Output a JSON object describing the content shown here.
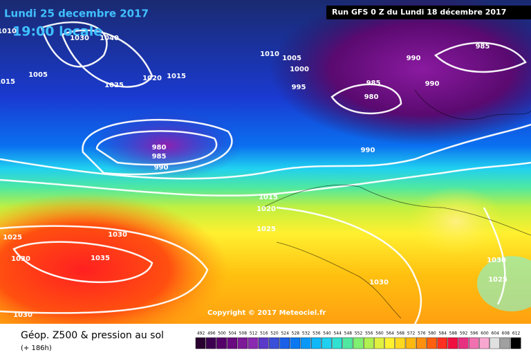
{
  "header": {
    "date": "Lundi 25 decembre 2017",
    "time": "19:00 locale",
    "run": "Run GFS 0 Z du Lundi 18 décembre 2017"
  },
  "map": {
    "isobar_labels": [
      1030,
      1040,
      1010,
      1005,
      1015,
      1025,
      1020,
      1015,
      1010,
      1005,
      1000,
      995,
      990,
      985,
      985,
      980,
      990,
      990,
      980,
      985,
      990,
      1015,
      1020,
      1025,
      1030,
      1035,
      1025,
      1030,
      1030,
      1030,
      1025,
      1030
    ],
    "copyright": "Copyright © 2017 Meteociel.fr"
  },
  "footer": {
    "title": "Géop. Z500 & pression au sol",
    "lead": "(+ 186h)",
    "scale": {
      "values": [
        492,
        496,
        500,
        504,
        508,
        512,
        516,
        520,
        524,
        528,
        532,
        536,
        540,
        544,
        548,
        552,
        556,
        560,
        564,
        568,
        572,
        576,
        580,
        584,
        588,
        592,
        596,
        600,
        604,
        608,
        612
      ],
      "colors": [
        "#2a0030",
        "#3d0050",
        "#55006a",
        "#6a0a80",
        "#7d1a98",
        "#8a2ab0",
        "#5a3ac8",
        "#3a50d8",
        "#1a60e8",
        "#0a78f0",
        "#0a98f8",
        "#10b8f8",
        "#20d0f0",
        "#30e0d0",
        "#50e8a0",
        "#80f070",
        "#b0f050",
        "#e0f040",
        "#fff030",
        "#ffd820",
        "#ffb810",
        "#ff9010",
        "#ff6010",
        "#ff3020",
        "#f01040",
        "#e83080",
        "#f070b0",
        "#f8a8d0",
        "#e0e0e0",
        "#a0a0a0",
        "#000000"
      ]
    }
  }
}
